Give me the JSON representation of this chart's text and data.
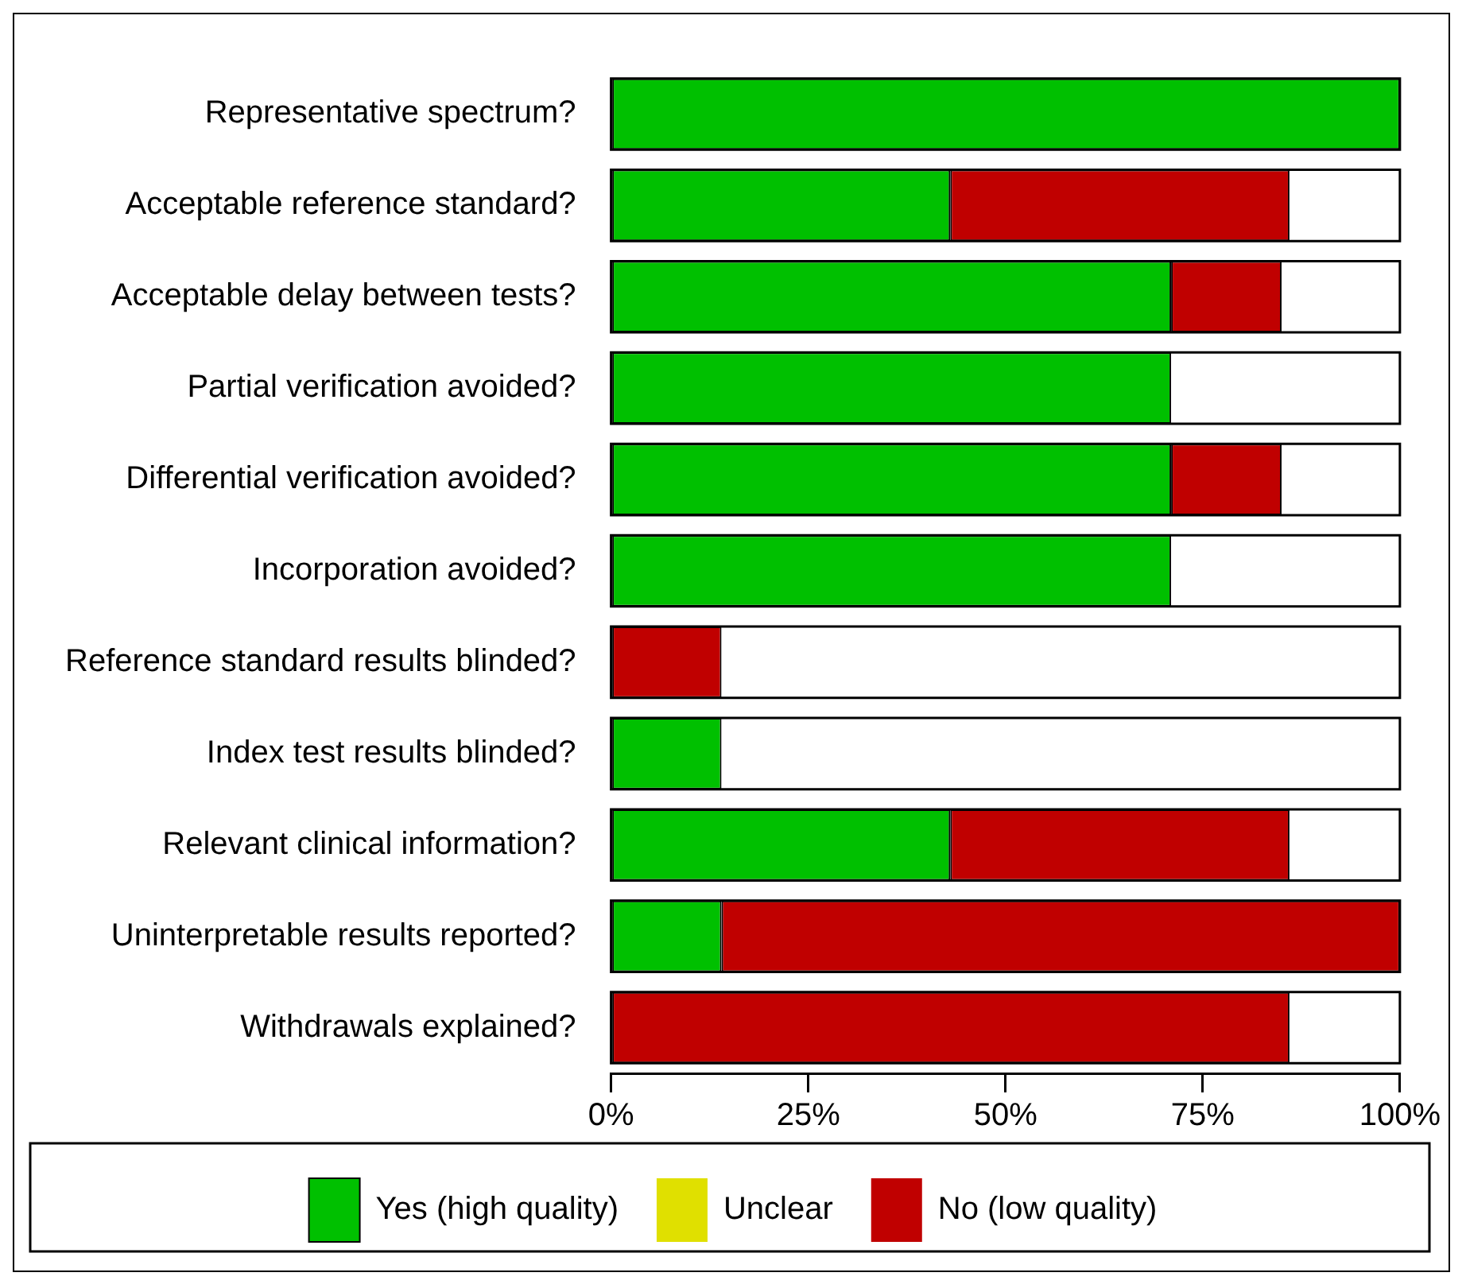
{
  "chart_data": {
    "type": "bar",
    "orientation": "horizontal",
    "stacked": true,
    "categories": [
      "Representative spectrum?",
      "Acceptable reference standard?",
      "Acceptable delay between tests?",
      "Partial verification avoided?",
      "Differential verification avoided?",
      "Incorporation avoided?",
      "Reference standard results blinded?",
      "Index test results blinded?",
      "Relevant clinical information?",
      "Uninterpretable results reported?",
      "Withdrawals explained?"
    ],
    "series": [
      {
        "name": "Yes (high quality)",
        "color": "#00c000",
        "values": [
          100,
          43,
          71,
          71,
          71,
          71,
          0,
          14,
          43,
          14,
          0
        ]
      },
      {
        "name": "Unclear",
        "color": "#e0e000",
        "values": [
          0,
          0,
          0,
          0,
          0,
          0,
          0,
          0,
          0,
          0,
          0
        ]
      },
      {
        "name": "No (low quality)",
        "color": "#c00000",
        "values": [
          0,
          43,
          14,
          0,
          14,
          0,
          14,
          0,
          43,
          86,
          86
        ]
      }
    ],
    "xlim": [
      0,
      100
    ],
    "xticks": [
      {
        "value": 0,
        "label": "0%"
      },
      {
        "value": 25,
        "label": "25%"
      },
      {
        "value": 50,
        "label": "50%"
      },
      {
        "value": 75,
        "label": "75%"
      },
      {
        "value": 100,
        "label": "100%"
      }
    ],
    "legend": "bottom"
  }
}
